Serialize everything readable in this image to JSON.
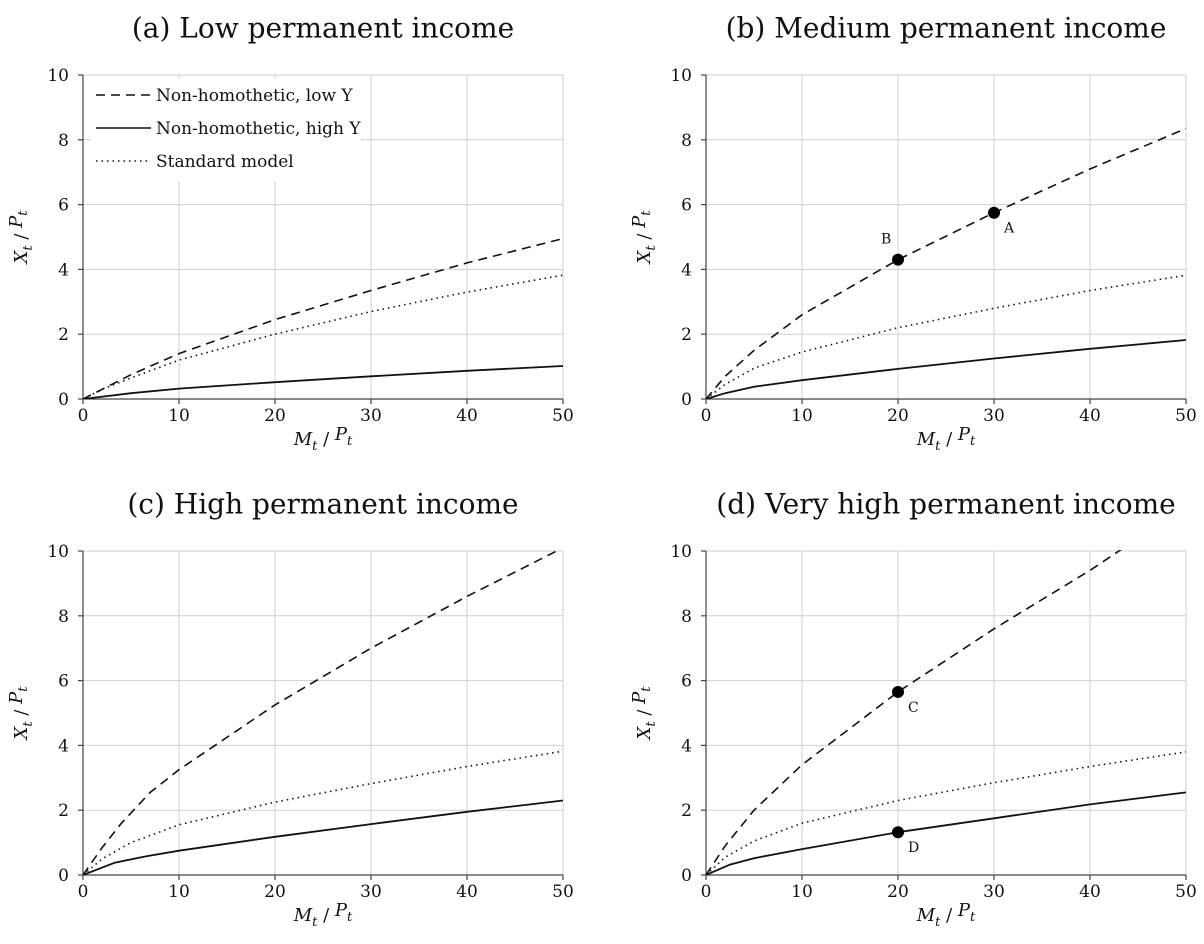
{
  "legend": {
    "items": [
      {
        "label": "Non-homothetic, low Y",
        "style": "dashed"
      },
      {
        "label": "Non-homothetic, high Y",
        "style": "solid"
      },
      {
        "label": "Standard model",
        "style": "dotted"
      }
    ]
  },
  "axis_labels": {
    "x": {
      "main": "M",
      "sub": "t",
      "sep": " / ",
      "main2": "P",
      "sub2": "t"
    },
    "y": {
      "main": "X",
      "sub": "t",
      "sep": " / ",
      "main2": "P",
      "sub2": "t"
    }
  },
  "chart_data": [
    {
      "type": "line",
      "title": "(a) Low permanent income",
      "xlabel": "M_t / P_t",
      "ylabel": "X_t / P_t",
      "xlim": [
        0,
        50
      ],
      "ylim": [
        0,
        10
      ],
      "xticks": [
        "0",
        "10",
        "20",
        "30",
        "40",
        "50"
      ],
      "yticks": [
        "0",
        "2",
        "4",
        "6",
        "8",
        "10"
      ],
      "grid": true,
      "legend_position": "top-left",
      "series": [
        {
          "name": "Non-homothetic, low Y",
          "style": "dashed",
          "x": [
            0,
            5,
            10,
            20,
            30,
            40,
            50
          ],
          "y": [
            0,
            0.75,
            1.4,
            2.45,
            3.35,
            4.2,
            4.95
          ]
        },
        {
          "name": "Non-homothetic, high Y",
          "style": "solid",
          "x": [
            0,
            5,
            10,
            20,
            30,
            40,
            50
          ],
          "y": [
            0,
            0.18,
            0.32,
            0.52,
            0.7,
            0.87,
            1.02
          ]
        },
        {
          "name": "Standard model",
          "style": "dotted",
          "x": [
            0,
            2,
            5,
            10,
            20,
            30,
            40,
            50
          ],
          "y": [
            0,
            0.3,
            0.65,
            1.2,
            2.0,
            2.7,
            3.3,
            3.82
          ]
        }
      ],
      "annotations": []
    },
    {
      "type": "line",
      "title": "(b) Medium permanent income",
      "xlabel": "M_t / P_t",
      "ylabel": "X_t / P_t",
      "xlim": [
        0,
        50
      ],
      "ylim": [
        0,
        10
      ],
      "xticks": [
        "0",
        "10",
        "20",
        "30",
        "40",
        "50"
      ],
      "yticks": [
        "0",
        "2",
        "4",
        "6",
        "8",
        "10"
      ],
      "grid": true,
      "series": [
        {
          "name": "Non-homothetic, low Y",
          "style": "dashed",
          "x": [
            0,
            2,
            5,
            10,
            20,
            30,
            40,
            50
          ],
          "y": [
            0,
            0.7,
            1.5,
            2.6,
            4.3,
            5.75,
            7.1,
            8.35
          ]
        },
        {
          "name": "Non-homothetic, high Y",
          "style": "solid",
          "x": [
            0,
            2,
            5,
            10,
            20,
            30,
            40,
            50
          ],
          "y": [
            0,
            0.18,
            0.38,
            0.58,
            0.93,
            1.25,
            1.55,
            1.82
          ]
        },
        {
          "name": "Standard model",
          "style": "dotted",
          "x": [
            0,
            2,
            5,
            10,
            20,
            30,
            40,
            50
          ],
          "y": [
            0,
            0.45,
            0.95,
            1.45,
            2.2,
            2.8,
            3.35,
            3.82
          ]
        }
      ],
      "annotations": [
        {
          "label": "A",
          "x": 30,
          "y": 5.75,
          "label_side": "below-right"
        },
        {
          "label": "B",
          "x": 20,
          "y": 4.3,
          "label_side": "above-left"
        }
      ]
    },
    {
      "type": "line",
      "title": "(c) High permanent income",
      "xlabel": "M_t / P_t",
      "ylabel": "X_t / P_t",
      "xlim": [
        0,
        50
      ],
      "ylim": [
        0,
        10
      ],
      "xticks": [
        "0",
        "10",
        "20",
        "30",
        "40",
        "50"
      ],
      "yticks": [
        "0",
        "2",
        "4",
        "6",
        "8",
        "10"
      ],
      "grid": true,
      "series": [
        {
          "name": "Non-homothetic, low Y",
          "style": "dashed",
          "x": [
            0,
            2,
            4,
            7,
            10,
            20,
            30,
            40,
            50
          ],
          "y": [
            0,
            0.85,
            1.6,
            2.55,
            3.25,
            5.25,
            7.0,
            8.6,
            10.1
          ]
        },
        {
          "name": "Non-homothetic, high Y",
          "style": "solid",
          "x": [
            0,
            3.3,
            6.6,
            10,
            20,
            30,
            40,
            50
          ],
          "y": [
            0,
            0.38,
            0.58,
            0.75,
            1.18,
            1.57,
            1.95,
            2.3
          ]
        },
        {
          "name": "Standard model",
          "style": "dotted",
          "x": [
            0,
            2,
            5,
            10,
            20,
            30,
            40,
            50
          ],
          "y": [
            0,
            0.5,
            1.0,
            1.55,
            2.25,
            2.82,
            3.35,
            3.82
          ]
        }
      ],
      "annotations": []
    },
    {
      "type": "line",
      "title": "(d) Very high permanent income",
      "xlabel": "M_t / P_t",
      "ylabel": "X_t / P_t",
      "xlim": [
        0,
        50
      ],
      "ylim": [
        0,
        10
      ],
      "xticks": [
        "0",
        "10",
        "20",
        "30",
        "40",
        "50"
      ],
      "yticks": [
        "0",
        "2",
        "4",
        "6",
        "8",
        "10"
      ],
      "grid": true,
      "series": [
        {
          "name": "Non-homothetic, low Y",
          "style": "dashed",
          "x": [
            0,
            2,
            5,
            10,
            20,
            30,
            40,
            43.5
          ],
          "y": [
            0,
            0.9,
            2.0,
            3.4,
            5.65,
            7.6,
            9.4,
            10.1
          ]
        },
        {
          "name": "Non-homothetic, high Y",
          "style": "solid",
          "x": [
            0,
            2.5,
            5,
            10,
            20,
            30,
            40,
            50
          ],
          "y": [
            0,
            0.32,
            0.52,
            0.8,
            1.32,
            1.75,
            2.18,
            2.55
          ]
        },
        {
          "name": "Standard model",
          "style": "dotted",
          "x": [
            0,
            2,
            5,
            10,
            20,
            30,
            40,
            50
          ],
          "y": [
            0,
            0.55,
            1.05,
            1.6,
            2.3,
            2.85,
            3.35,
            3.8
          ]
        }
      ],
      "annotations": [
        {
          "label": "C",
          "x": 20,
          "y": 5.65,
          "label_side": "below-right"
        },
        {
          "label": "D",
          "x": 20,
          "y": 1.32,
          "label_side": "below-right"
        }
      ]
    }
  ]
}
